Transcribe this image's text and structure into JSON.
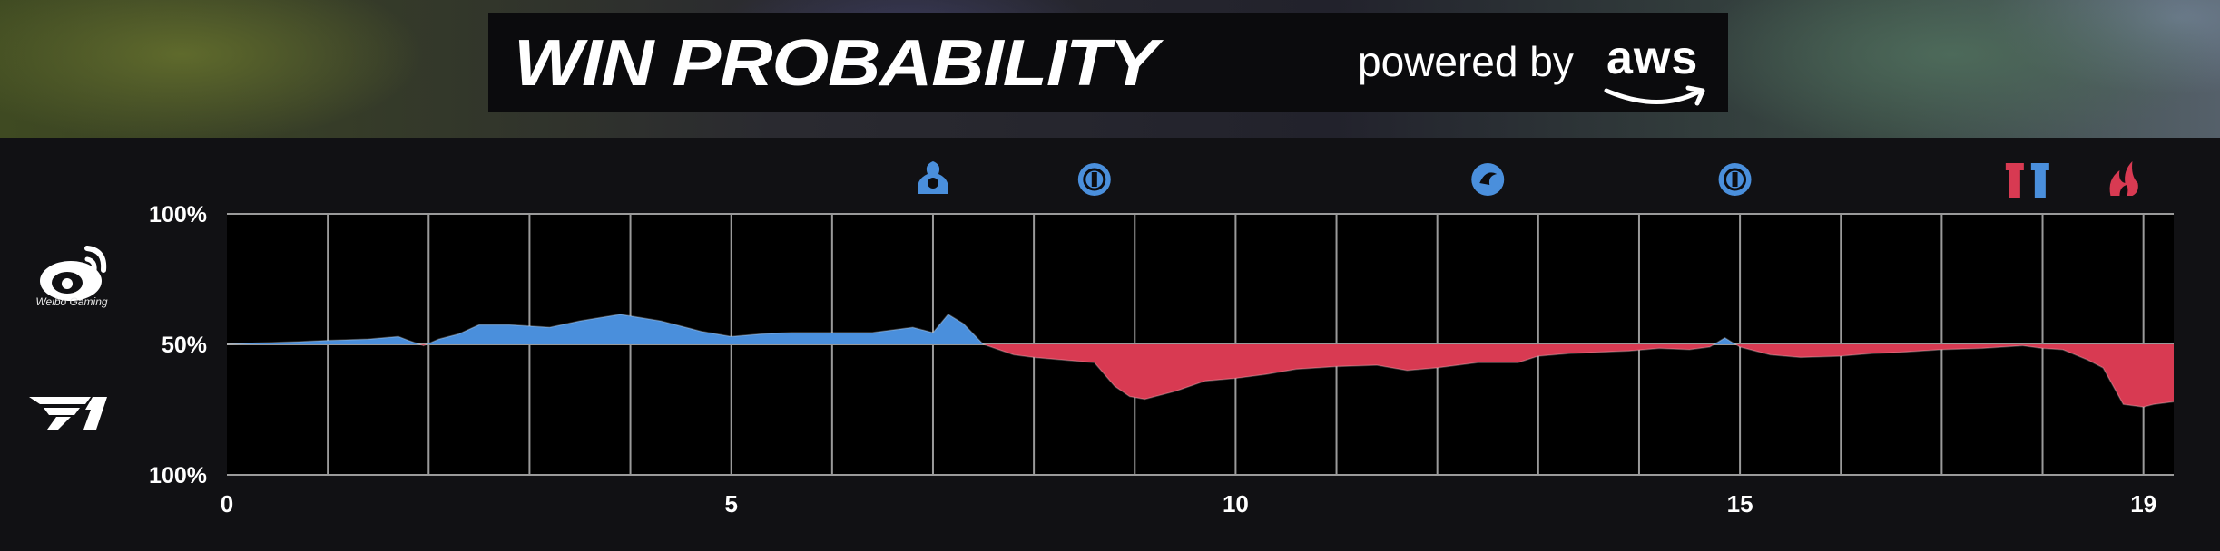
{
  "banner": {
    "title": "WIN PROBABILITY",
    "powered_by": "powered by",
    "sponsor": "aws"
  },
  "teams": [
    {
      "name": "Weibo Gaming",
      "color": "#4a8fdc",
      "logo_icon": "weibo-logo-icon"
    },
    {
      "name": "T1",
      "color": "#e2384d",
      "logo_icon": "t1-logo-icon"
    }
  ],
  "chart_data": {
    "type": "area",
    "xlim": [
      0,
      19.3
    ],
    "x_ticks": [
      {
        "value": 0,
        "label": "0"
      },
      {
        "value": 5,
        "label": "5"
      },
      {
        "value": 10,
        "label": "10"
      },
      {
        "value": 15,
        "label": "15"
      },
      {
        "value": 19,
        "label": "19"
      }
    ],
    "y_ticks": [
      {
        "value": 100,
        "label": "100%",
        "side": "Weibo Gaming"
      },
      {
        "value": 50,
        "label": "50%",
        "side": "even"
      },
      {
        "value": 0,
        "label": "100%",
        "side": "T1"
      }
    ],
    "ylim": [
      0,
      100
    ],
    "baseline": 50,
    "grid": true,
    "above_color": "#4a8fdc",
    "below_color": "#d83a52",
    "series": {
      "x": [
        0,
        0.3,
        0.7,
        1.0,
        1.4,
        1.7,
        1.8,
        1.95,
        2.1,
        2.3,
        2.5,
        2.8,
        3.2,
        3.5,
        3.9,
        4.3,
        4.7,
        5.0,
        5.3,
        5.6,
        6.0,
        6.4,
        6.8,
        7.0,
        7.15,
        7.3,
        7.5,
        7.8,
        8.0,
        8.3,
        8.6,
        8.8,
        8.95,
        9.1,
        9.4,
        9.7,
        10.0,
        10.3,
        10.6,
        11.0,
        11.4,
        11.7,
        12.0,
        12.4,
        12.8,
        13.0,
        13.3,
        13.6,
        13.9,
        14.2,
        14.5,
        14.7,
        14.85,
        15.0,
        15.3,
        15.6,
        16.0,
        16.3,
        16.6,
        17.0,
        17.4,
        17.8,
        18.0,
        18.2,
        18.45,
        18.6,
        18.8,
        19.0,
        19.1,
        19.3
      ],
      "y": [
        50,
        50.5,
        51,
        51.5,
        52,
        53,
        51.5,
        49.5,
        52,
        54,
        57.5,
        57.5,
        56.5,
        59,
        61.5,
        59,
        55,
        53,
        54,
        54.5,
        54.5,
        54.5,
        56.5,
        54.5,
        61.5,
        58,
        50,
        46,
        45,
        44,
        43,
        34,
        30,
        29,
        32,
        36,
        37,
        38.5,
        40.5,
        41.5,
        42,
        40,
        41,
        43,
        43,
        45.5,
        46.5,
        47,
        47.5,
        48.5,
        48,
        49,
        52.5,
        49,
        46,
        45,
        45.5,
        46.5,
        47,
        48,
        48.5,
        49.5,
        48.5,
        48,
        44,
        41,
        27,
        26,
        27,
        28
      ]
    },
    "event_icons": [
      {
        "x": 7.0,
        "team": "Weibo Gaming",
        "icon": "infernal-drake-icon"
      },
      {
        "x": 8.6,
        "team": "Weibo Gaming",
        "icon": "herald-icon"
      },
      {
        "x": 12.5,
        "team": "Weibo Gaming",
        "icon": "ocean-drake-icon"
      },
      {
        "x": 14.95,
        "team": "Weibo Gaming",
        "icon": "herald-icon"
      },
      {
        "x": 17.85,
        "team": "both",
        "icon": "tower-icon"
      },
      {
        "x": 18.8,
        "team": "T1",
        "icon": "drake-icon"
      }
    ]
  }
}
